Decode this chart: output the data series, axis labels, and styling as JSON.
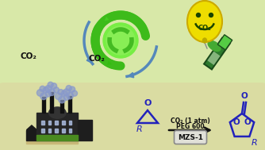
{
  "bg_color": "#d8e8a8",
  "bg_color2": "#e0deb0",
  "border_color": "#7ab830",
  "co2_label1": "CO₂",
  "co2_label2": "CO₂",
  "reaction_text1": "CO₂ (1 atm)",
  "reaction_text2": "PEG 600",
  "catalyst": "MZS-1",
  "arrow_color": "#111111",
  "recycle_green1": "#44cc22",
  "recycle_green2": "#33bb11",
  "recycle_light": "#66dd44",
  "blue_arrow": "#5588bb",
  "text_dark": "#111111",
  "balloon_yellow": "#eedd00",
  "balloon_outline": "#ccaa00",
  "balloon_face": "#225500",
  "tube_dark": "#226622",
  "tube_mid": "#338833",
  "tube_light": "#55aa44",
  "smoke_color": "#8899cc",
  "factory_dark": "#222222",
  "factory_mid": "#444444",
  "factory_green": "#448822",
  "epoxide_color": "#2222bb",
  "carbonate_color": "#2222bb",
  "pill_fill": "#e0e0d8",
  "pill_edge": "#888888"
}
